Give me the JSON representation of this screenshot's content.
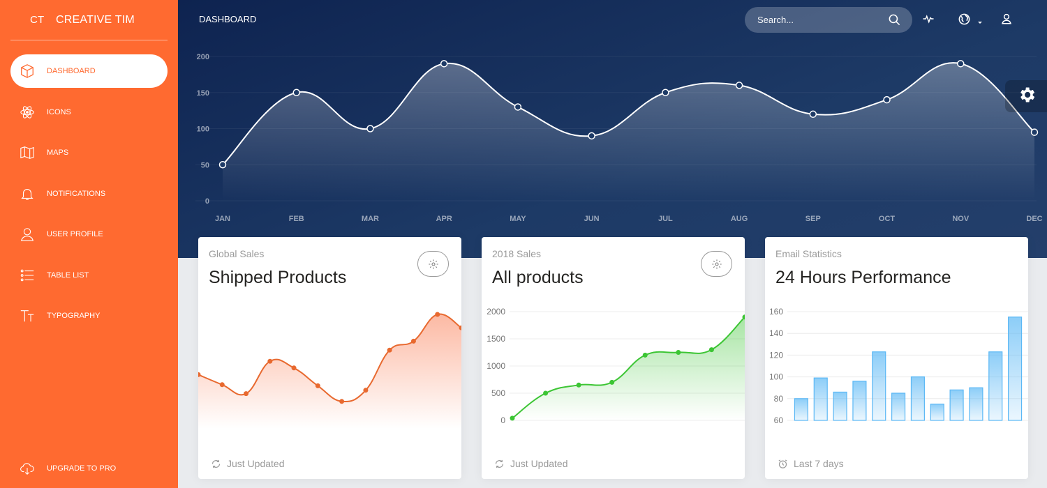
{
  "sidebar": {
    "brand_mini": "CT",
    "brand_name": "CREATIVE TIM",
    "items": [
      {
        "label": "DASHBOARD",
        "icon": "box-icon"
      },
      {
        "label": "ICONS",
        "icon": "atom-icon"
      },
      {
        "label": "MAPS",
        "icon": "map-icon"
      },
      {
        "label": "NOTIFICATIONS",
        "icon": "bell-icon"
      },
      {
        "label": "USER PROFILE",
        "icon": "user-icon"
      },
      {
        "label": "TABLE LIST",
        "icon": "list-icon"
      },
      {
        "label": "TYPOGRAPHY",
        "icon": "text-icon"
      }
    ],
    "upgrade_label": "UPGRADE TO PRO"
  },
  "header": {
    "title": "DASHBOARD",
    "search_placeholder": "Search..."
  },
  "colors": {
    "accent": "#ff6a30",
    "header_bg": "#1d3a66",
    "green": "#3cc534",
    "blue_bar": "#5bb8f5"
  },
  "chart_data": [
    {
      "type": "area",
      "categories": [
        "JAN",
        "FEB",
        "MAR",
        "APR",
        "MAY",
        "JUN",
        "JUL",
        "AUG",
        "SEP",
        "OCT",
        "NOV",
        "DEC"
      ],
      "values": [
        50,
        150,
        100,
        190,
        130,
        90,
        150,
        160,
        120,
        140,
        190,
        95
      ],
      "ylim": [
        0,
        200
      ],
      "yticks": [
        "0",
        "50",
        "100",
        "150",
        "200"
      ]
    },
    {
      "type": "line",
      "category": "Global Sales",
      "title": "Shipped Products",
      "values": [
        180,
        135,
        95,
        240,
        210,
        130,
        60,
        110,
        290,
        330,
        450,
        390
      ],
      "footer": "Just Updated"
    },
    {
      "type": "line",
      "category": "2018 Sales",
      "title": "All products",
      "values": [
        40,
        500,
        650,
        700,
        1200,
        1250,
        1300,
        1900
      ],
      "ylim": [
        0,
        2000
      ],
      "yticks": [
        "0",
        "500",
        "1000",
        "1500",
        "2000"
      ],
      "footer": "Just Updated"
    },
    {
      "type": "bar",
      "category": "Email Statistics",
      "title": "24 Hours Performance",
      "values": [
        80,
        99,
        86,
        96,
        123,
        85,
        100,
        75,
        88,
        90,
        123,
        155
      ],
      "ylim": [
        60,
        160
      ],
      "yticks": [
        "60",
        "80",
        "100",
        "120",
        "140",
        "160"
      ],
      "footer": "Last 7 days"
    }
  ]
}
